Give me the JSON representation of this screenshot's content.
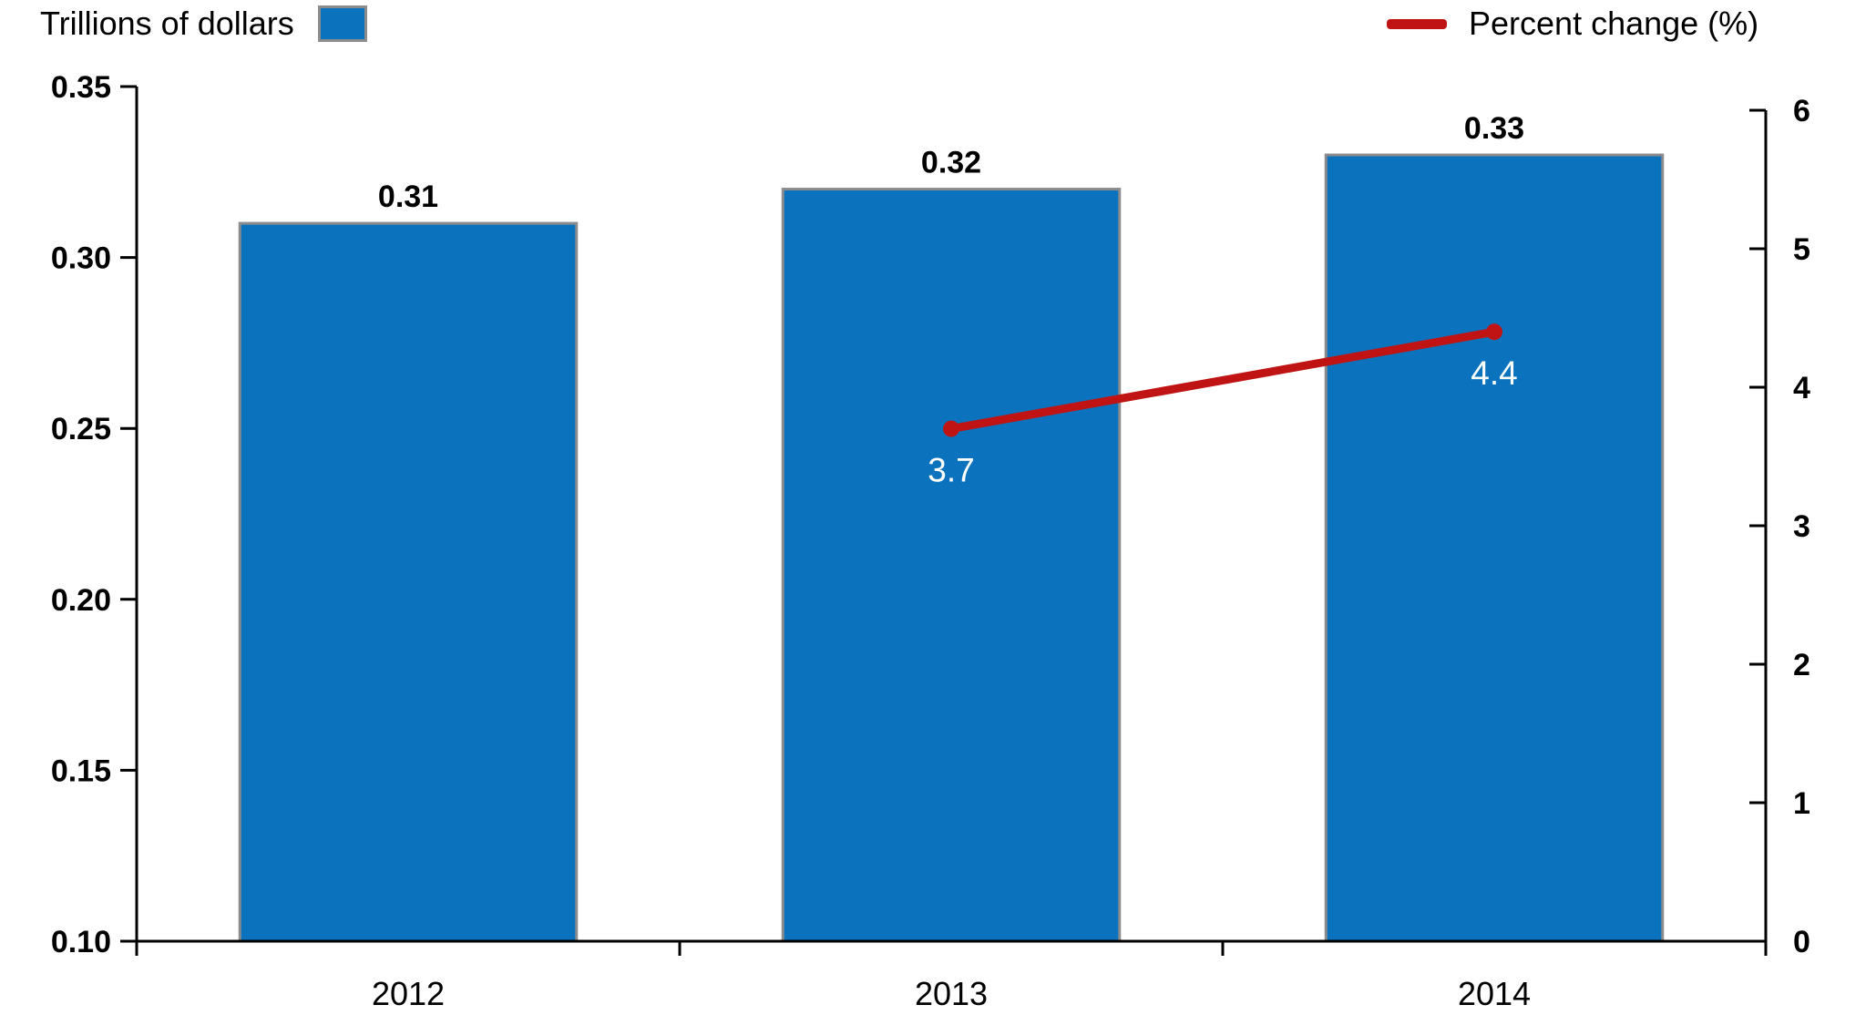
{
  "chart_data": {
    "type": "combo_bar_line",
    "title": "",
    "categories": [
      "2012",
      "2013",
      "2014"
    ],
    "series": [
      {
        "name": "Trillions of dollars",
        "type": "bar",
        "axis": "left",
        "color": "#0b72be",
        "border_color": "#8c8c8c",
        "values": [
          0.31,
          0.32,
          0.33
        ],
        "labels": [
          "0.31",
          "0.32",
          "0.33"
        ]
      },
      {
        "name": "Percent change (%)",
        "type": "line",
        "axis": "right",
        "color": "#c01414",
        "values": [
          null,
          3.7,
          4.4
        ],
        "labels": [
          null,
          "3.7",
          "4.4"
        ]
      }
    ],
    "left_axis": {
      "title": "Trillions of dollars",
      "min": 0.1,
      "max": 0.35,
      "tick_step": 0.05,
      "tick_labels": [
        "0.35",
        "0.30",
        "0.25",
        "0.20",
        "0.15",
        "0.10"
      ]
    },
    "right_axis": {
      "title": "Percent change (%)",
      "min": 0,
      "max": 6,
      "tick_step": 1,
      "tick_labels": [
        "6",
        "5",
        "4",
        "3",
        "2",
        "1",
        "0"
      ]
    },
    "x_axis": {
      "tick_labels": [
        "2012",
        "2013",
        "2014"
      ]
    },
    "grid": false,
    "legend": {
      "position": "top",
      "items": [
        {
          "label": "Trillions of dollars",
          "marker": "square",
          "color": "#0b72be",
          "border_color": "#8c8c8c"
        },
        {
          "label": "Percent change (%)",
          "marker": "line",
          "color": "#c01414"
        }
      ]
    },
    "data_label_colors": {
      "bar": "#000000",
      "line": "#ffffff"
    },
    "axis_color": "#000000"
  }
}
